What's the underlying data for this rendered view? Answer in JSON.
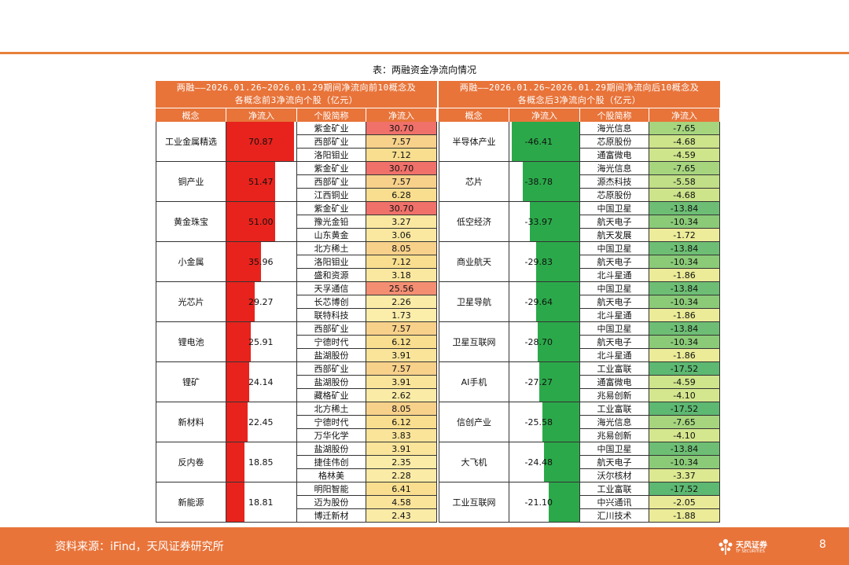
{
  "caption": "表：两融资金净流向情况",
  "left_table": {
    "title_line1": "两融——2026.01.26~2026.01.29期间净流向前10概念及",
    "title_line2": "各概念前3净流向个股（亿元）",
    "col_headers": [
      "概念",
      "净流入",
      "个股简称",
      "净流入"
    ],
    "max_flow": 70.87,
    "groups": [
      {
        "concept": "工业金属精选",
        "flow": "70.87",
        "flow_value": 70.87,
        "stocks": [
          [
            "紫金矿业",
            "30.70",
            "#F0706A"
          ],
          [
            "西部矿业",
            "7.57",
            "#F7D08A"
          ],
          [
            "洛阳钼业",
            "7.12",
            "#F8DE8E"
          ]
        ]
      },
      {
        "concept": "铜产业",
        "flow": "51.47",
        "flow_value": 51.47,
        "stocks": [
          [
            "紫金矿业",
            "30.70",
            "#F0706A"
          ],
          [
            "西部矿业",
            "7.57",
            "#F7D08A"
          ],
          [
            "江西铜业",
            "6.28",
            "#F8DE8E"
          ]
        ]
      },
      {
        "concept": "黄金珠宝",
        "flow": "51.00",
        "flow_value": 51.0,
        "stocks": [
          [
            "紫金矿业",
            "30.70",
            "#F0706A"
          ],
          [
            "豫光金铅",
            "3.27",
            "#FAE8A0"
          ],
          [
            "山东黄金",
            "3.06",
            "#FAE8A0"
          ]
        ]
      },
      {
        "concept": "小金属",
        "flow": "35.96",
        "flow_value": 35.96,
        "stocks": [
          [
            "北方稀土",
            "8.05",
            "#F7D08A"
          ],
          [
            "洛阳钼业",
            "7.12",
            "#F8DE8E"
          ],
          [
            "盛和资源",
            "3.18",
            "#FAE8A0"
          ]
        ]
      },
      {
        "concept": "光芯片",
        "flow": "29.27",
        "flow_value": 29.27,
        "stocks": [
          [
            "天孚通信",
            "25.56",
            "#F48E72"
          ],
          [
            "长芯博创",
            "2.26",
            "#FAEBA6"
          ],
          [
            "联特科技",
            "1.73",
            "#FBEDAA"
          ]
        ]
      },
      {
        "concept": "锂电池",
        "flow": "25.91",
        "flow_value": 25.91,
        "stocks": [
          [
            "西部矿业",
            "7.57",
            "#F7D08A"
          ],
          [
            "宁德时代",
            "6.12",
            "#F8DE8E"
          ],
          [
            "盐湖股份",
            "3.91",
            "#F9E49A"
          ]
        ]
      },
      {
        "concept": "锂矿",
        "flow": "24.14",
        "flow_value": 24.14,
        "stocks": [
          [
            "西部矿业",
            "7.57",
            "#F7D08A"
          ],
          [
            "盐湖股份",
            "3.91",
            "#F9E49A"
          ],
          [
            "藏格矿业",
            "2.62",
            "#FAEBA6"
          ]
        ]
      },
      {
        "concept": "新材料",
        "flow": "22.45",
        "flow_value": 22.45,
        "stocks": [
          [
            "北方稀土",
            "8.05",
            "#F7D08A"
          ],
          [
            "宁德时代",
            "6.12",
            "#F8DE8E"
          ],
          [
            "万华化学",
            "3.83",
            "#F9E49A"
          ]
        ]
      },
      {
        "concept": "反内卷",
        "flow": "18.85",
        "flow_value": 18.85,
        "stocks": [
          [
            "盐湖股份",
            "3.91",
            "#F9E49A"
          ],
          [
            "捷佳伟创",
            "2.35",
            "#FAEBA6"
          ],
          [
            "格林美",
            "2.28",
            "#FAEBA6"
          ]
        ]
      },
      {
        "concept": "新能源",
        "flow": "18.81",
        "flow_value": 18.81,
        "stocks": [
          [
            "明阳智能",
            "6.41",
            "#F8DE8E"
          ],
          [
            "迈为股份",
            "4.58",
            "#F9E49A"
          ],
          [
            "博迁新材",
            "2.43",
            "#FAEBA6"
          ]
        ]
      }
    ]
  },
  "right_table": {
    "title_line1": "两融——2026.01.26~2026.01.29期间净流向后10概念及",
    "title_line2": "各概念后3净流向个股（亿元）",
    "col_headers": [
      "概念",
      "净流入",
      "个股简称",
      "净流入"
    ],
    "max_flow": 46.41,
    "groups": [
      {
        "concept": "半导体产业",
        "flow": "-46.41",
        "flow_value": -46.41,
        "stocks": [
          [
            "海光信息",
            "-7.65",
            "#A6D57E"
          ],
          [
            "芯原股份",
            "-4.68",
            "#CDE48A"
          ],
          [
            "通富微电",
            "-4.59",
            "#CFE58B"
          ]
        ]
      },
      {
        "concept": "芯片",
        "flow": "-38.78",
        "flow_value": -38.78,
        "stocks": [
          [
            "海光信息",
            "-7.65",
            "#A6D57E"
          ],
          [
            "源杰科技",
            "-5.58",
            "#C1DF86"
          ],
          [
            "芯原股份",
            "-4.68",
            "#CDE48A"
          ]
        ]
      },
      {
        "concept": "低空经济",
        "flow": "-33.97",
        "flow_value": -33.97,
        "stocks": [
          [
            "中国卫星",
            "-13.84",
            "#6DBE74"
          ],
          [
            "航天电子",
            "-10.34",
            "#8BCB78"
          ],
          [
            "航天发展",
            "-1.72",
            "#EDEC9A"
          ]
        ]
      },
      {
        "concept": "商业航天",
        "flow": "-29.83",
        "flow_value": -29.83,
        "stocks": [
          [
            "中国卫星",
            "-13.84",
            "#6DBE74"
          ],
          [
            "航天电子",
            "-10.34",
            "#8BCB78"
          ],
          [
            "北斗星通",
            "-1.86",
            "#EBEB98"
          ]
        ]
      },
      {
        "concept": "卫星导航",
        "flow": "-29.64",
        "flow_value": -29.64,
        "stocks": [
          [
            "中国卫星",
            "-13.84",
            "#6DBE74"
          ],
          [
            "航天电子",
            "-10.34",
            "#8BCB78"
          ],
          [
            "北斗星通",
            "-1.86",
            "#EBEB98"
          ]
        ]
      },
      {
        "concept": "卫星互联网",
        "flow": "-28.70",
        "flow_value": -28.7,
        "stocks": [
          [
            "中国卫星",
            "-13.84",
            "#6DBE74"
          ],
          [
            "航天电子",
            "-10.34",
            "#8BCB78"
          ],
          [
            "北斗星通",
            "-1.86",
            "#EBEB98"
          ]
        ]
      },
      {
        "concept": "AI手机",
        "flow": "-27.27",
        "flow_value": -27.27,
        "stocks": [
          [
            "工业富联",
            "-17.52",
            "#5DB871"
          ],
          [
            "通富微电",
            "-4.59",
            "#CFE58B"
          ],
          [
            "兆易创新",
            "-4.10",
            "#D5E78E"
          ]
        ]
      },
      {
        "concept": "信创产业",
        "flow": "-25.58",
        "flow_value": -25.58,
        "stocks": [
          [
            "工业富联",
            "-17.52",
            "#5DB871"
          ],
          [
            "海光信息",
            "-7.65",
            "#A6D57E"
          ],
          [
            "兆易创新",
            "-4.10",
            "#D5E78E"
          ]
        ]
      },
      {
        "concept": "大飞机",
        "flow": "-24.48",
        "flow_value": -24.48,
        "stocks": [
          [
            "中国卫星",
            "-13.84",
            "#6DBE74"
          ],
          [
            "航天电子",
            "-10.34",
            "#8BCB78"
          ],
          [
            "沃尔核材",
            "-3.37",
            "#DDE991"
          ]
        ]
      },
      {
        "concept": "工业互联网",
        "flow": "-21.10",
        "flow_value": -21.1,
        "stocks": [
          [
            "工业富联",
            "-17.52",
            "#5DB871"
          ],
          [
            "中兴通讯",
            "-2.05",
            "#E9EA97"
          ],
          [
            "汇川技术",
            "-1.88",
            "#EBEB98"
          ]
        ]
      }
    ]
  },
  "footer": {
    "source": "资料来源：iFind，天风证券研究所",
    "logo_text": "天风证券",
    "logo_sub": "TF SECURITIES",
    "page_number": "8"
  },
  "colors": {
    "accent": "#E8743A",
    "positive_bar": "#E8231D",
    "negative_bar": "#2BA94A"
  }
}
